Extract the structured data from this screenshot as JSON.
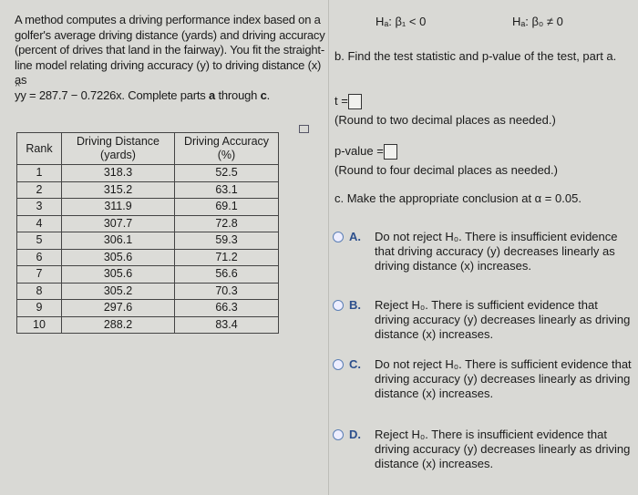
{
  "intro": {
    "text": "A method computes a driving performance index based on a golfer's average driving distance (yards) and driving accuracy (percent of drives that land in the fairway). You fit the straight-line model relating driving accuracy (y) to driving distance (x) as",
    "equation": "y = 287.7 − 0.7226x. Complete parts ",
    "a": "a",
    "through": " through ",
    "c": "c",
    "end": "."
  },
  "table": {
    "headers": [
      "Rank",
      "Driving Distance (yards)",
      "Driving Accuracy (%)"
    ],
    "rows": [
      [
        "1",
        "318.3",
        "52.5"
      ],
      [
        "2",
        "315.2",
        "63.1"
      ],
      [
        "3",
        "311.9",
        "69.1"
      ],
      [
        "4",
        "307.7",
        "72.8"
      ],
      [
        "5",
        "306.1",
        "59.3"
      ],
      [
        "6",
        "305.6",
        "71.2"
      ],
      [
        "7",
        "305.6",
        "56.6"
      ],
      [
        "8",
        "305.2",
        "70.3"
      ],
      [
        "9",
        "297.6",
        "66.3"
      ],
      [
        "10",
        "288.2",
        "83.4"
      ]
    ]
  },
  "hyp": {
    "h1": "Hₐ: β₁ < 0",
    "h2": "Hₐ: β₀ ≠ 0"
  },
  "partb": {
    "text": "b. Find the test statistic and p-value of the test, part a.",
    "t_label": "t =",
    "t_value": "",
    "t_note": "(Round to two decimal places as needed.)",
    "p_label": "p-value =",
    "p_value": "",
    "p_note": "(Round to four decimal places as needed.)"
  },
  "partc": {
    "text": "c. Make the appropriate conclusion at α = 0.05."
  },
  "options": [
    {
      "letter": "A.",
      "text": "Do not reject H₀. There is insufficient evidence that driving accuracy (y) decreases linearly as driving distance (x) increases."
    },
    {
      "letter": "B.",
      "text": "Reject H₀. There is sufficient evidence that driving accuracy (y) decreases linearly as driving distance (x) increases."
    },
    {
      "letter": "C.",
      "text": "Do not reject H₀. There is sufficient evidence that driving accuracy (y) decreases linearly as driving distance (x) increases."
    },
    {
      "letter": "D.",
      "text": "Reject H₀. There is insufficient evidence that driving accuracy (y) decreases linearly as driving distance (x) increases."
    }
  ]
}
